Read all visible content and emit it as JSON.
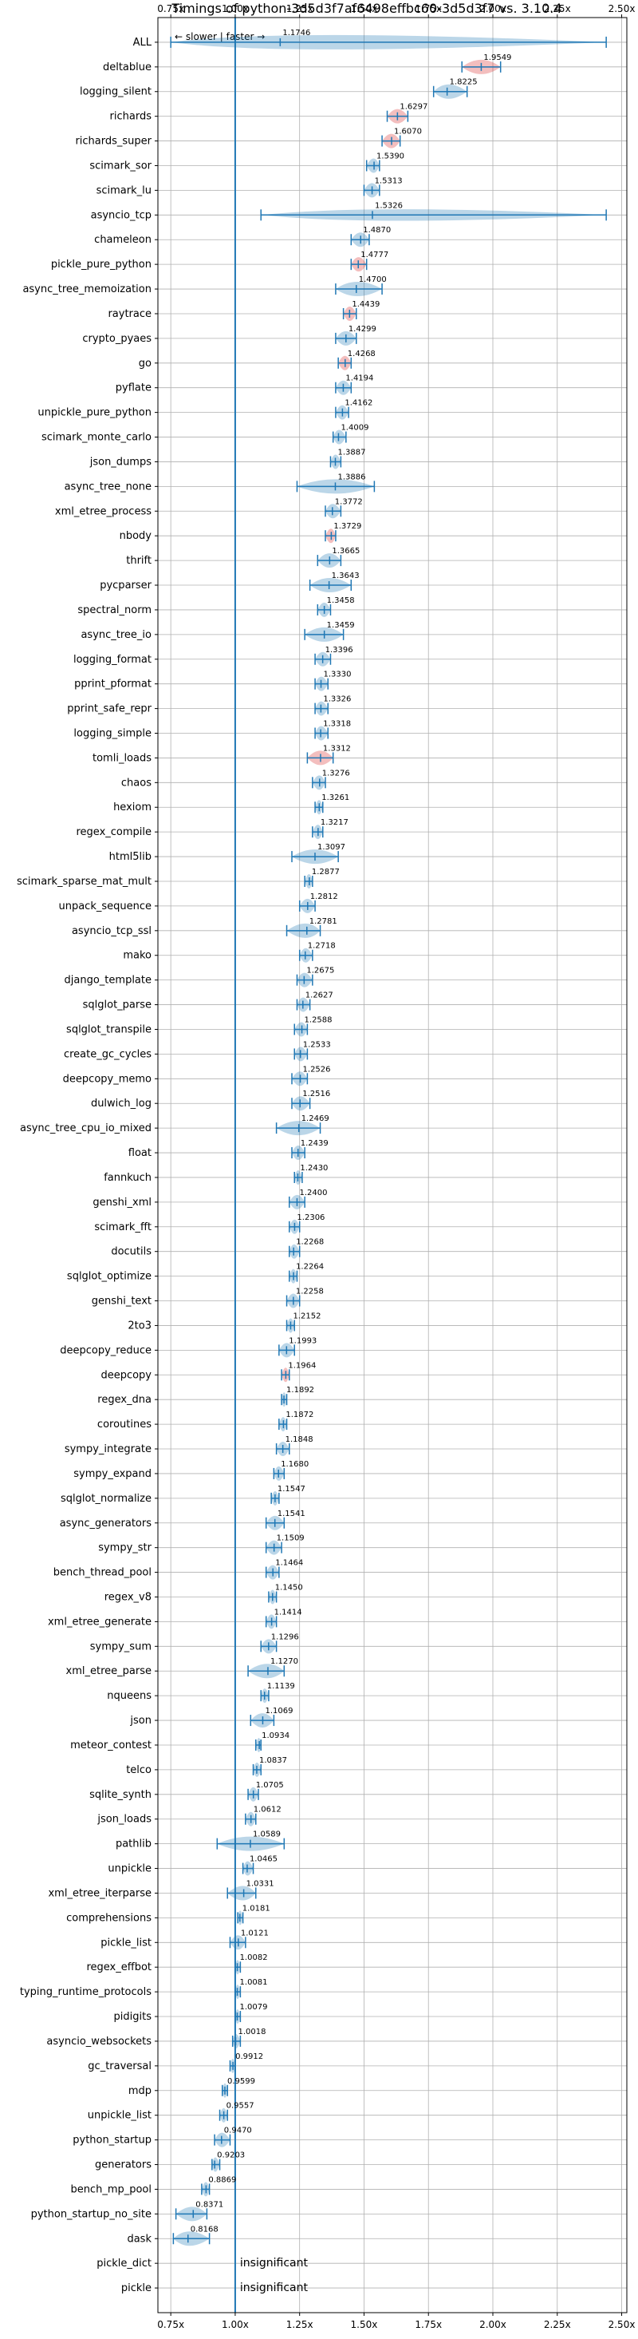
{
  "chart_data": {
    "type": "violin",
    "title": "Timings of python-3d5d3f7af6498effbc60-3d5d3f7 vs. 3.10.4",
    "direction_label": "←  slower  |  faster  →",
    "xlim": [
      0.7,
      2.52
    ],
    "x_ticks": [
      0.75,
      1.0,
      1.25,
      1.5,
      1.75,
      2.0,
      2.25,
      2.5
    ],
    "x_tick_labels": [
      "0.75x",
      "1.00x",
      "1.25x",
      "1.50x",
      "1.75x",
      "2.00x",
      "2.25x",
      "2.50x"
    ],
    "reference_line": 1.0,
    "grid": true,
    "colors": {
      "normal": "#1f77b4",
      "significant": "#d62728"
    },
    "benchmarks": [
      {
        "name": "ALL",
        "value": 1.1746,
        "label": "1.1746",
        "min": 0.75,
        "max": 2.44,
        "spread": 0.16,
        "highlight": false
      },
      {
        "name": "deltablue",
        "value": 1.9549,
        "label": "1.9549",
        "min": 1.88,
        "max": 2.03,
        "spread": 0.05,
        "highlight": true
      },
      {
        "name": "logging_silent",
        "value": 1.8225,
        "label": "1.8225",
        "min": 1.77,
        "max": 1.9,
        "spread": 0.03,
        "highlight": false
      },
      {
        "name": "richards",
        "value": 1.6297,
        "label": "1.6297",
        "min": 1.59,
        "max": 1.67,
        "spread": 0.03,
        "highlight": true
      },
      {
        "name": "richards_super",
        "value": 1.607,
        "label": "1.6070",
        "min": 1.57,
        "max": 1.64,
        "spread": 0.03,
        "highlight": true
      },
      {
        "name": "scimark_sor",
        "value": 1.539,
        "label": "1.5390",
        "min": 1.51,
        "max": 1.56,
        "spread": 0.02,
        "highlight": false
      },
      {
        "name": "scimark_lu",
        "value": 1.5313,
        "label": "1.5313",
        "min": 1.5,
        "max": 1.56,
        "spread": 0.02,
        "highlight": false
      },
      {
        "name": "asyncio_tcp",
        "value": 1.5326,
        "label": "1.5326",
        "min": 1.1,
        "max": 2.44,
        "spread": 0.25,
        "highlight": false
      },
      {
        "name": "chameleon",
        "value": 1.487,
        "label": "1.4870",
        "min": 1.45,
        "max": 1.52,
        "spread": 0.03,
        "highlight": false
      },
      {
        "name": "pickle_pure_python",
        "value": 1.4777,
        "label": "1.4777",
        "min": 1.45,
        "max": 1.51,
        "spread": 0.02,
        "highlight": true
      },
      {
        "name": "async_tree_memoization",
        "value": 1.47,
        "label": "1.4700",
        "min": 1.39,
        "max": 1.57,
        "spread": 0.08,
        "highlight": false
      },
      {
        "name": "raytrace",
        "value": 1.4439,
        "label": "1.4439",
        "min": 1.42,
        "max": 1.47,
        "spread": 0.02,
        "highlight": true
      },
      {
        "name": "crypto_pyaes",
        "value": 1.4299,
        "label": "1.4299",
        "min": 1.39,
        "max": 1.47,
        "spread": 0.02,
        "highlight": false
      },
      {
        "name": "go",
        "value": 1.4268,
        "label": "1.4268",
        "min": 1.4,
        "max": 1.45,
        "spread": 0.02,
        "highlight": true
      },
      {
        "name": "pyflate",
        "value": 1.4194,
        "label": "1.4194",
        "min": 1.39,
        "max": 1.45,
        "spread": 0.02,
        "highlight": false
      },
      {
        "name": "unpickle_pure_python",
        "value": 1.4162,
        "label": "1.4162",
        "min": 1.39,
        "max": 1.44,
        "spread": 0.02,
        "highlight": false
      },
      {
        "name": "scimark_monte_carlo",
        "value": 1.4009,
        "label": "1.4009",
        "min": 1.38,
        "max": 1.43,
        "spread": 0.02,
        "highlight": false
      },
      {
        "name": "json_dumps",
        "value": 1.3887,
        "label": "1.3887",
        "min": 1.37,
        "max": 1.41,
        "spread": 0.02,
        "highlight": false
      },
      {
        "name": "async_tree_none",
        "value": 1.3886,
        "label": "1.3886",
        "min": 1.24,
        "max": 1.54,
        "spread": 0.1,
        "highlight": false
      },
      {
        "name": "xml_etree_process",
        "value": 1.3772,
        "label": "1.3772",
        "min": 1.35,
        "max": 1.41,
        "spread": 0.02,
        "highlight": false
      },
      {
        "name": "nbody",
        "value": 1.3729,
        "label": "1.3729",
        "min": 1.35,
        "max": 1.39,
        "spread": 0.02,
        "highlight": true
      },
      {
        "name": "thrift",
        "value": 1.3665,
        "label": "1.3665",
        "min": 1.32,
        "max": 1.41,
        "spread": 0.03,
        "highlight": false
      },
      {
        "name": "pycparser",
        "value": 1.3643,
        "label": "1.3643",
        "min": 1.29,
        "max": 1.45,
        "spread": 0.07,
        "highlight": false
      },
      {
        "name": "spectral_norm",
        "value": 1.3458,
        "label": "1.3458",
        "min": 1.32,
        "max": 1.37,
        "spread": 0.02,
        "highlight": false
      },
      {
        "name": "async_tree_io",
        "value": 1.3459,
        "label": "1.3459",
        "min": 1.27,
        "max": 1.42,
        "spread": 0.05,
        "highlight": false
      },
      {
        "name": "logging_format",
        "value": 1.3396,
        "label": "1.3396",
        "min": 1.31,
        "max": 1.37,
        "spread": 0.02,
        "highlight": false
      },
      {
        "name": "pprint_pformat",
        "value": 1.333,
        "label": "1.3330",
        "min": 1.31,
        "max": 1.36,
        "spread": 0.02,
        "highlight": false
      },
      {
        "name": "pprint_safe_repr",
        "value": 1.3326,
        "label": "1.3326",
        "min": 1.31,
        "max": 1.36,
        "spread": 0.02,
        "highlight": false
      },
      {
        "name": "logging_simple",
        "value": 1.3318,
        "label": "1.3318",
        "min": 1.31,
        "max": 1.36,
        "spread": 0.02,
        "highlight": false
      },
      {
        "name": "tomli_loads",
        "value": 1.3312,
        "label": "1.3312",
        "min": 1.28,
        "max": 1.38,
        "spread": 0.04,
        "highlight": true
      },
      {
        "name": "chaos",
        "value": 1.3276,
        "label": "1.3276",
        "min": 1.3,
        "max": 1.35,
        "spread": 0.02,
        "highlight": false
      },
      {
        "name": "hexiom",
        "value": 1.3261,
        "label": "1.3261",
        "min": 1.31,
        "max": 1.34,
        "spread": 0.01,
        "highlight": false
      },
      {
        "name": "regex_compile",
        "value": 1.3217,
        "label": "1.3217",
        "min": 1.3,
        "max": 1.34,
        "spread": 0.02,
        "highlight": false
      },
      {
        "name": "html5lib",
        "value": 1.3097,
        "label": "1.3097",
        "min": 1.22,
        "max": 1.4,
        "spread": 0.06,
        "highlight": false
      },
      {
        "name": "scimark_sparse_mat_mult",
        "value": 1.2877,
        "label": "1.2877",
        "min": 1.27,
        "max": 1.3,
        "spread": 0.01,
        "highlight": false
      },
      {
        "name": "unpack_sequence",
        "value": 1.2812,
        "label": "1.2812",
        "min": 1.25,
        "max": 1.31,
        "spread": 0.02,
        "highlight": false
      },
      {
        "name": "asyncio_tcp_ssl",
        "value": 1.2781,
        "label": "1.2781",
        "min": 1.2,
        "max": 1.33,
        "spread": 0.03,
        "highlight": false
      },
      {
        "name": "mako",
        "value": 1.2718,
        "label": "1.2718",
        "min": 1.25,
        "max": 1.3,
        "spread": 0.02,
        "highlight": false
      },
      {
        "name": "django_template",
        "value": 1.2675,
        "label": "1.2675",
        "min": 1.24,
        "max": 1.3,
        "spread": 0.02,
        "highlight": false
      },
      {
        "name": "sqlglot_parse",
        "value": 1.2627,
        "label": "1.2627",
        "min": 1.24,
        "max": 1.29,
        "spread": 0.02,
        "highlight": false
      },
      {
        "name": "sqlglot_transpile",
        "value": 1.2588,
        "label": "1.2588",
        "min": 1.23,
        "max": 1.28,
        "spread": 0.02,
        "highlight": false
      },
      {
        "name": "create_gc_cycles",
        "value": 1.2533,
        "label": "1.2533",
        "min": 1.23,
        "max": 1.28,
        "spread": 0.02,
        "highlight": false
      },
      {
        "name": "deepcopy_memo",
        "value": 1.2526,
        "label": "1.2526",
        "min": 1.22,
        "max": 1.28,
        "spread": 0.02,
        "highlight": false
      },
      {
        "name": "dulwich_log",
        "value": 1.2516,
        "label": "1.2516",
        "min": 1.22,
        "max": 1.29,
        "spread": 0.02,
        "highlight": false
      },
      {
        "name": "async_tree_cpu_io_mixed",
        "value": 1.2469,
        "label": "1.2469",
        "min": 1.16,
        "max": 1.33,
        "spread": 0.05,
        "highlight": false
      },
      {
        "name": "float",
        "value": 1.2439,
        "label": "1.2439",
        "min": 1.22,
        "max": 1.27,
        "spread": 0.02,
        "highlight": false
      },
      {
        "name": "fannkuch",
        "value": 1.243,
        "label": "1.2430",
        "min": 1.23,
        "max": 1.26,
        "spread": 0.01,
        "highlight": false
      },
      {
        "name": "genshi_xml",
        "value": 1.24,
        "label": "1.2400",
        "min": 1.21,
        "max": 1.27,
        "spread": 0.02,
        "highlight": false
      },
      {
        "name": "scimark_fft",
        "value": 1.2306,
        "label": "1.2306",
        "min": 1.21,
        "max": 1.25,
        "spread": 0.01,
        "highlight": false
      },
      {
        "name": "docutils",
        "value": 1.2268,
        "label": "1.2268",
        "min": 1.21,
        "max": 1.25,
        "spread": 0.02,
        "highlight": false
      },
      {
        "name": "sqlglot_optimize",
        "value": 1.2264,
        "label": "1.2264",
        "min": 1.21,
        "max": 1.24,
        "spread": 0.01,
        "highlight": false
      },
      {
        "name": "genshi_text",
        "value": 1.2258,
        "label": "1.2258",
        "min": 1.2,
        "max": 1.25,
        "spread": 0.02,
        "highlight": false
      },
      {
        "name": "2to3",
        "value": 1.2152,
        "label": "1.2152",
        "min": 1.2,
        "max": 1.23,
        "spread": 0.01,
        "highlight": false
      },
      {
        "name": "deepcopy_reduce",
        "value": 1.1993,
        "label": "1.1993",
        "min": 1.17,
        "max": 1.23,
        "spread": 0.02,
        "highlight": false
      },
      {
        "name": "deepcopy",
        "value": 1.1964,
        "label": "1.1964",
        "min": 1.18,
        "max": 1.21,
        "spread": 0.01,
        "highlight": true
      },
      {
        "name": "regex_dna",
        "value": 1.1892,
        "label": "1.1892",
        "min": 1.18,
        "max": 1.2,
        "spread": 0.01,
        "highlight": false
      },
      {
        "name": "coroutines",
        "value": 1.1872,
        "label": "1.1872",
        "min": 1.17,
        "max": 1.2,
        "spread": 0.01,
        "highlight": false
      },
      {
        "name": "sympy_integrate",
        "value": 1.1848,
        "label": "1.1848",
        "min": 1.16,
        "max": 1.21,
        "spread": 0.02,
        "highlight": false
      },
      {
        "name": "sympy_expand",
        "value": 1.168,
        "label": "1.1680",
        "min": 1.15,
        "max": 1.19,
        "spread": 0.01,
        "highlight": false
      },
      {
        "name": "sqlglot_normalize",
        "value": 1.1547,
        "label": "1.1547",
        "min": 1.14,
        "max": 1.17,
        "spread": 0.01,
        "highlight": false
      },
      {
        "name": "async_generators",
        "value": 1.1541,
        "label": "1.1541",
        "min": 1.12,
        "max": 1.19,
        "spread": 0.02,
        "highlight": false
      },
      {
        "name": "sympy_str",
        "value": 1.1509,
        "label": "1.1509",
        "min": 1.12,
        "max": 1.18,
        "spread": 0.02,
        "highlight": false
      },
      {
        "name": "bench_thread_pool",
        "value": 1.1464,
        "label": "1.1464",
        "min": 1.12,
        "max": 1.17,
        "spread": 0.02,
        "highlight": false
      },
      {
        "name": "regex_v8",
        "value": 1.145,
        "label": "1.1450",
        "min": 1.13,
        "max": 1.16,
        "spread": 0.01,
        "highlight": false
      },
      {
        "name": "xml_etree_generate",
        "value": 1.1414,
        "label": "1.1414",
        "min": 1.12,
        "max": 1.16,
        "spread": 0.01,
        "highlight": false
      },
      {
        "name": "sympy_sum",
        "value": 1.1296,
        "label": "1.1296",
        "min": 1.1,
        "max": 1.16,
        "spread": 0.02,
        "highlight": false
      },
      {
        "name": "xml_etree_parse",
        "value": 1.127,
        "label": "1.1270",
        "min": 1.05,
        "max": 1.19,
        "spread": 0.04,
        "highlight": false
      },
      {
        "name": "nqueens",
        "value": 1.1139,
        "label": "1.1139",
        "min": 1.1,
        "max": 1.13,
        "spread": 0.01,
        "highlight": false
      },
      {
        "name": "json",
        "value": 1.1069,
        "label": "1.1069",
        "min": 1.06,
        "max": 1.15,
        "spread": 0.03,
        "highlight": false
      },
      {
        "name": "meteor_contest",
        "value": 1.0934,
        "label": "1.0934",
        "min": 1.08,
        "max": 1.1,
        "spread": 0.01,
        "highlight": false
      },
      {
        "name": "telco",
        "value": 1.0837,
        "label": "1.0837",
        "min": 1.07,
        "max": 1.1,
        "spread": 0.01,
        "highlight": false
      },
      {
        "name": "sqlite_synth",
        "value": 1.0705,
        "label": "1.0705",
        "min": 1.05,
        "max": 1.09,
        "spread": 0.01,
        "highlight": false
      },
      {
        "name": "json_loads",
        "value": 1.0612,
        "label": "1.0612",
        "min": 1.04,
        "max": 1.08,
        "spread": 0.02,
        "highlight": false
      },
      {
        "name": "pathlib",
        "value": 1.0589,
        "label": "1.0589",
        "min": 0.93,
        "max": 1.19,
        "spread": 0.06,
        "highlight": false
      },
      {
        "name": "unpickle",
        "value": 1.0465,
        "label": "1.0465",
        "min": 1.03,
        "max": 1.07,
        "spread": 0.01,
        "highlight": false
      },
      {
        "name": "xml_etree_iterparse",
        "value": 1.0331,
        "label": "1.0331",
        "min": 0.97,
        "max": 1.08,
        "spread": 0.03,
        "highlight": false
      },
      {
        "name": "comprehensions",
        "value": 1.0181,
        "label": "1.0181",
        "min": 1.01,
        "max": 1.03,
        "spread": 0.01,
        "highlight": false
      },
      {
        "name": "pickle_list",
        "value": 1.0121,
        "label": "1.0121",
        "min": 0.98,
        "max": 1.04,
        "spread": 0.02,
        "highlight": false
      },
      {
        "name": "regex_effbot",
        "value": 1.0082,
        "label": "1.0082",
        "min": 1.0,
        "max": 1.02,
        "spread": 0.005,
        "highlight": false
      },
      {
        "name": "typing_runtime_protocols",
        "value": 1.0081,
        "label": "1.0081",
        "min": 1.0,
        "max": 1.02,
        "spread": 0.005,
        "highlight": false
      },
      {
        "name": "pidigits",
        "value": 1.0079,
        "label": "1.0079",
        "min": 1.0,
        "max": 1.02,
        "spread": 0.01,
        "highlight": false
      },
      {
        "name": "asyncio_websockets",
        "value": 1.0018,
        "label": "1.0018",
        "min": 0.99,
        "max": 1.02,
        "spread": 0.01,
        "highlight": false
      },
      {
        "name": "gc_traversal",
        "value": 0.9912,
        "label": "0.9912",
        "min": 0.98,
        "max": 1.0,
        "spread": 0.005,
        "highlight": false
      },
      {
        "name": "mdp",
        "value": 0.9599,
        "label": "0.9599",
        "min": 0.95,
        "max": 0.97,
        "spread": 0.005,
        "highlight": false
      },
      {
        "name": "unpickle_list",
        "value": 0.9557,
        "label": "0.9557",
        "min": 0.94,
        "max": 0.97,
        "spread": 0.005,
        "highlight": false
      },
      {
        "name": "python_startup",
        "value": 0.947,
        "label": "0.9470",
        "min": 0.92,
        "max": 0.98,
        "spread": 0.02,
        "highlight": false
      },
      {
        "name": "generators",
        "value": 0.9203,
        "label": "0.9203",
        "min": 0.91,
        "max": 0.94,
        "spread": 0.01,
        "highlight": false
      },
      {
        "name": "bench_mp_pool",
        "value": 0.8869,
        "label": "0.8869",
        "min": 0.87,
        "max": 0.9,
        "spread": 0.01,
        "highlight": false
      },
      {
        "name": "python_startup_no_site",
        "value": 0.8371,
        "label": "0.8371",
        "min": 0.77,
        "max": 0.89,
        "spread": 0.03,
        "highlight": false
      },
      {
        "name": "dask",
        "value": 0.8168,
        "label": "0.8168",
        "min": 0.76,
        "max": 0.9,
        "spread": 0.06,
        "highlight": false
      },
      {
        "name": "pickle_dict",
        "value": null,
        "label": "insignificant",
        "min": null,
        "max": null,
        "spread": 0,
        "highlight": false
      },
      {
        "name": "pickle",
        "value": null,
        "label": "insignificant",
        "min": null,
        "max": null,
        "spread": 0,
        "highlight": false
      }
    ]
  }
}
